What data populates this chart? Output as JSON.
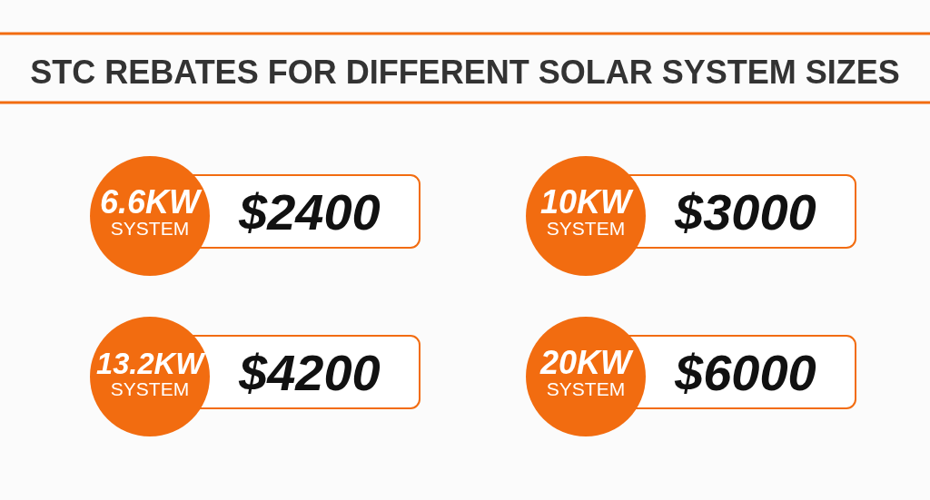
{
  "chart_data": {
    "type": "other",
    "title": "STC REBATES FOR DIFFERENT SOLAR SYSTEM SIZES",
    "categories": [
      "6.6KW SYSTEM",
      "10KW SYSTEM",
      "13.2KW SYSTEM",
      "20KW SYSTEM"
    ],
    "values": [
      2400,
      3000,
      4200,
      6000
    ],
    "value_labels": [
      "$2400",
      "$3000",
      "$4200",
      "$6000"
    ],
    "color": "#f26c10"
  }
}
